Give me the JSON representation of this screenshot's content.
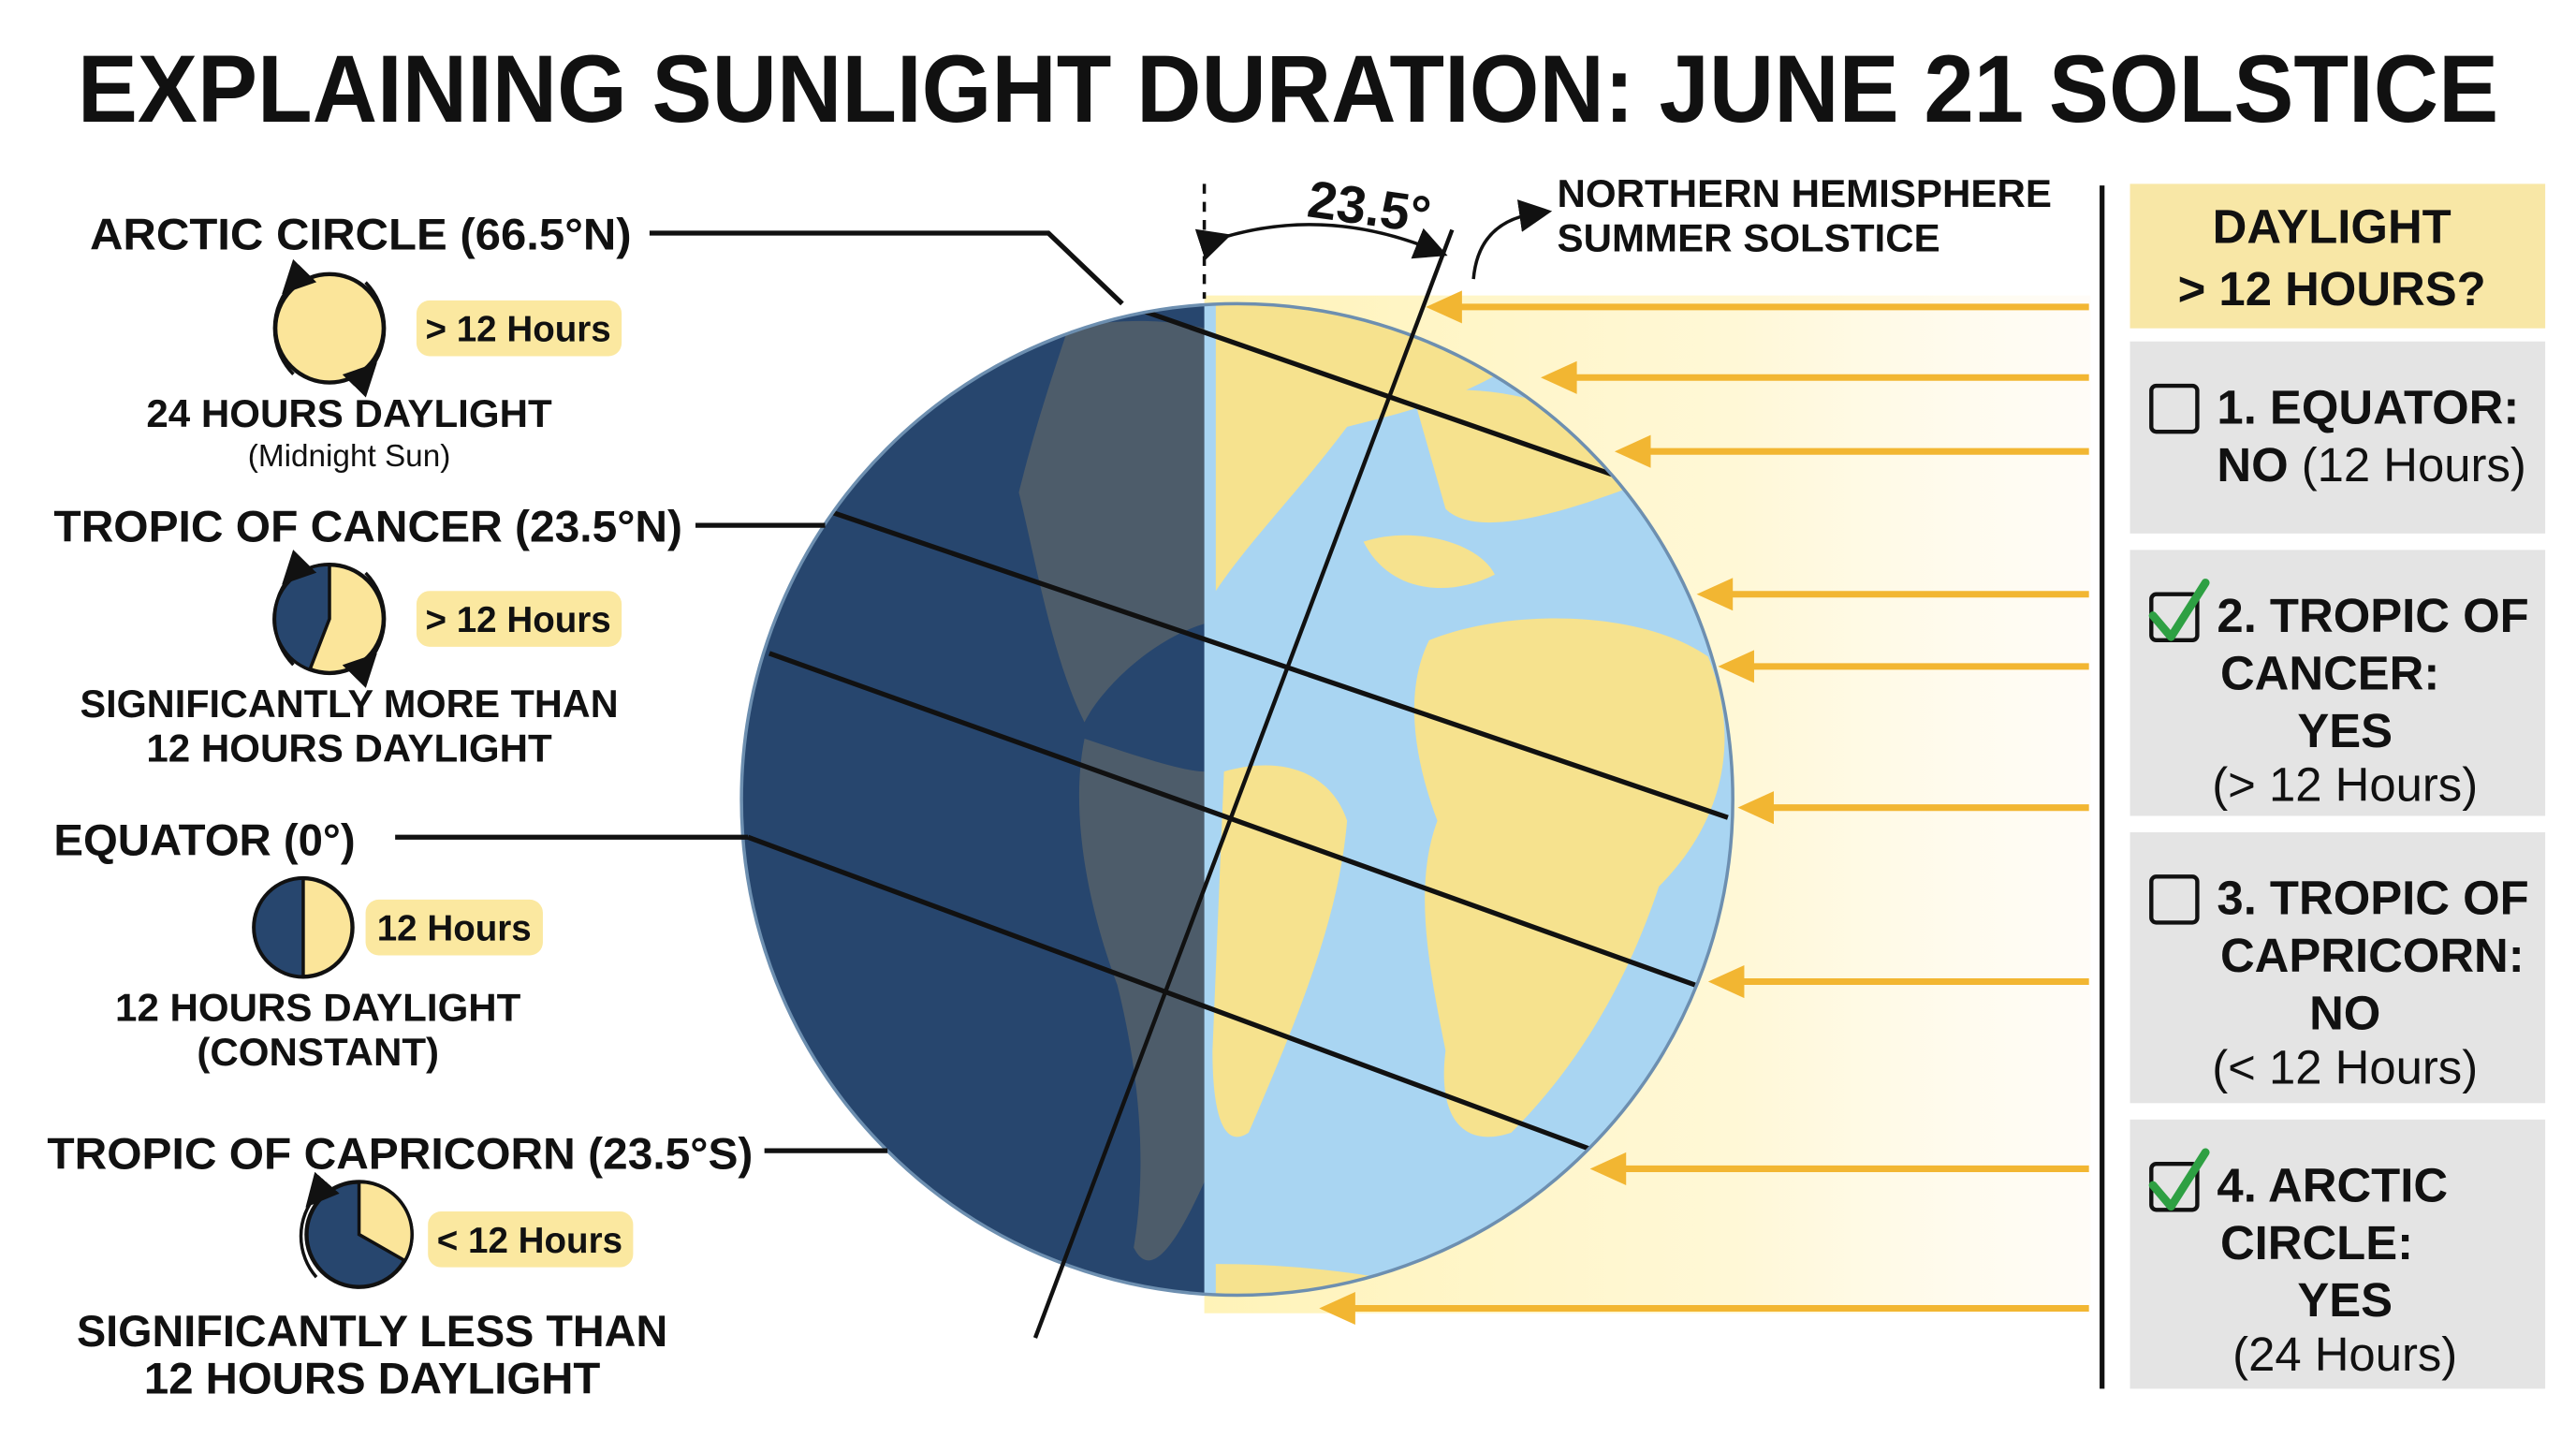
{
  "title": "EXPLAINING SUNLIGHT DURATION: JUNE 21 SOLSTICE",
  "tilt": {
    "angle": "23.5°",
    "note": [
      "NORTHERN HEMISPHERE",
      "SUMMER SOLSTICE"
    ]
  },
  "latitudes": [
    {
      "name": "ARCTIC CIRCLE (66.5°N)",
      "badge": "> 12 Hours",
      "caption": [
        "24 HOURS DAYLIGHT",
        "(Midnight Sun)"
      ]
    },
    {
      "name": "TROPIC OF CANCER (23.5°N)",
      "badge": "> 12 Hours",
      "caption": [
        "SIGNIFICANTLY MORE THAN",
        "12 HOURS DAYLIGHT"
      ]
    },
    {
      "name": "EQUATOR (0°)",
      "badge": "12 Hours",
      "caption": [
        "12 HOURS DAYLIGHT",
        "(CONSTANT)"
      ]
    },
    {
      "name": "TROPIC OF CAPRICORN (23.5°S)",
      "badge": "< 12 Hours",
      "caption": [
        "SIGNIFICANTLY LESS THAN",
        "12 HOURS DAYLIGHT"
      ]
    }
  ],
  "panel": {
    "header": [
      "DAYLIGHT",
      "> 12 HOURS?"
    ],
    "items": [
      {
        "checked": false,
        "lines": [
          "1. EQUATOR:"
        ],
        "answer": "NO",
        "detail": "(12 Hours)"
      },
      {
        "checked": true,
        "lines": [
          "2. TROPIC OF",
          "CANCER:"
        ],
        "answer": "YES",
        "detail": "(> 12 Hours)"
      },
      {
        "checked": false,
        "lines": [
          "3. TROPIC OF",
          "CAPRICORN:"
        ],
        "answer": "NO",
        "detail": "(< 12 Hours)"
      },
      {
        "checked": true,
        "lines": [
          "4. ARCTIC",
          "CIRCLE:"
        ],
        "answer": "YES",
        "detail": "(24 Hours)"
      }
    ]
  }
}
